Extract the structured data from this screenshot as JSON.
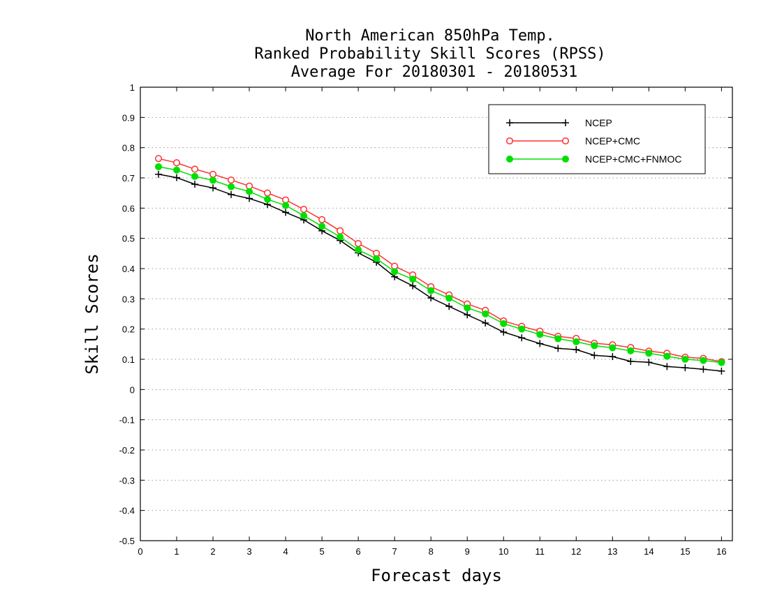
{
  "chart_data": {
    "type": "line",
    "title_lines": [
      "North American 850hPa Temp.",
      "Ranked Probability Skill Scores (RPSS)",
      "Average For 20180301 - 20180531"
    ],
    "xlabel": "Forecast days",
    "ylabel": "Skill Scores",
    "xlim": [
      0,
      16.3
    ],
    "ylim": [
      -0.5,
      1
    ],
    "xticks": [
      0,
      1,
      2,
      3,
      4,
      5,
      6,
      7,
      8,
      9,
      10,
      11,
      12,
      13,
      14,
      15,
      16
    ],
    "yticks": [
      -0.5,
      -0.4,
      -0.3,
      -0.2,
      -0.1,
      0,
      0.1,
      0.2,
      0.3,
      0.4,
      0.5,
      0.6,
      0.7,
      0.8,
      0.9,
      1
    ],
    "ytick_labels": [
      "-0.5",
      "-0.4",
      "-0.3",
      "-0.2",
      "-0.1",
      "0",
      "0.1",
      "0.2",
      "0.3",
      "0.4",
      "0.5",
      "0.6",
      "0.7",
      "0.8",
      "0.9",
      "1"
    ],
    "grid": "horizontal dotted",
    "legend_position": "top-right",
    "x": [
      0.5,
      1,
      1.5,
      2,
      2.5,
      3,
      3.5,
      4,
      4.5,
      5,
      5.5,
      6,
      6.5,
      7,
      7.5,
      8,
      8.5,
      9,
      9.5,
      10,
      10.5,
      11,
      11.5,
      12,
      12.5,
      13,
      13.5,
      14,
      14.5,
      15,
      15.5,
      16
    ],
    "series": [
      {
        "name": "NCEP",
        "color": "#000000",
        "marker": "plus",
        "values": [
          0.712,
          0.701,
          0.679,
          0.667,
          0.645,
          0.632,
          0.612,
          0.586,
          0.561,
          0.525,
          0.493,
          0.452,
          0.421,
          0.373,
          0.343,
          0.303,
          0.275,
          0.247,
          0.22,
          0.19,
          0.171,
          0.152,
          0.136,
          0.132,
          0.113,
          0.109,
          0.093,
          0.09,
          0.076,
          0.072,
          0.067,
          0.061
        ]
      },
      {
        "name": "NCEP+CMC",
        "color": "#ff3030",
        "marker": "open-circle",
        "values": [
          0.764,
          0.75,
          0.729,
          0.712,
          0.693,
          0.673,
          0.65,
          0.627,
          0.596,
          0.562,
          0.525,
          0.483,
          0.451,
          0.408,
          0.379,
          0.34,
          0.313,
          0.283,
          0.262,
          0.227,
          0.209,
          0.193,
          0.176,
          0.169,
          0.153,
          0.148,
          0.139,
          0.127,
          0.12,
          0.107,
          0.103,
          0.092
        ]
      },
      {
        "name": "NCEP+CMC+FNMOC",
        "color": "#00e000",
        "marker": "filled-circle",
        "values": [
          0.737,
          0.726,
          0.705,
          0.692,
          0.671,
          0.655,
          0.629,
          0.609,
          0.575,
          0.54,
          0.505,
          0.462,
          0.433,
          0.39,
          0.365,
          0.327,
          0.302,
          0.27,
          0.25,
          0.218,
          0.2,
          0.182,
          0.168,
          0.158,
          0.145,
          0.138,
          0.128,
          0.12,
          0.11,
          0.1,
          0.096,
          0.089
        ]
      }
    ]
  }
}
